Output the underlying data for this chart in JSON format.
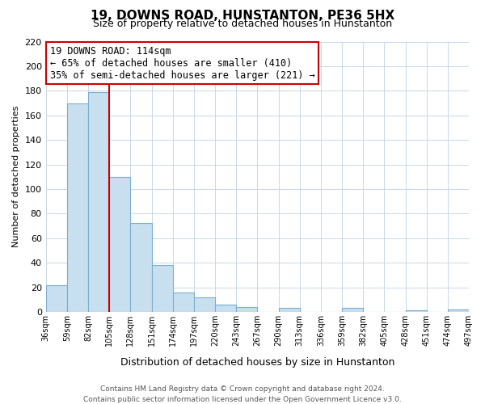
{
  "title": "19, DOWNS ROAD, HUNSTANTON, PE36 5HX",
  "subtitle": "Size of property relative to detached houses in Hunstanton",
  "xlabel": "Distribution of detached houses by size in Hunstanton",
  "ylabel": "Number of detached properties",
  "bar_values": [
    22,
    170,
    179,
    110,
    72,
    38,
    16,
    12,
    6,
    4,
    0,
    3,
    0,
    0,
    3,
    0,
    0,
    1,
    0,
    2
  ],
  "bin_labels": [
    "36sqm",
    "59sqm",
    "82sqm",
    "105sqm",
    "128sqm",
    "151sqm",
    "174sqm",
    "197sqm",
    "220sqm",
    "243sqm",
    "267sqm",
    "290sqm",
    "313sqm",
    "336sqm",
    "359sqm",
    "382sqm",
    "405sqm",
    "428sqm",
    "451sqm",
    "474sqm",
    "497sqm"
  ],
  "bar_color": "#c8dff0",
  "bar_edge_color": "#7aaed0",
  "vline_x": 3.0,
  "vline_color": "#cc0000",
  "annotation_line1": "19 DOWNS ROAD: 114sqm",
  "annotation_line2": "← 65% of detached houses are smaller (410)",
  "annotation_line3": "35% of semi-detached houses are larger (221) →",
  "ylim": [
    0,
    220
  ],
  "yticks": [
    0,
    20,
    40,
    60,
    80,
    100,
    120,
    140,
    160,
    180,
    200,
    220
  ],
  "footer_line1": "Contains HM Land Registry data © Crown copyright and database right 2024.",
  "footer_line2": "Contains public sector information licensed under the Open Government Licence v3.0.",
  "background_color": "#ffffff",
  "grid_color": "#c8d8e8"
}
